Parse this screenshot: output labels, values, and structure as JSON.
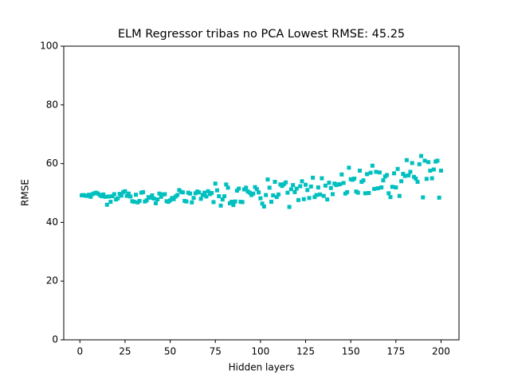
{
  "chart_data": {
    "type": "scatter",
    "title": "ELM Regressor tribas no PCA Lowest RMSE: 45.25",
    "x_label": "Hidden layers",
    "y_label": "RMSE",
    "xlim": [
      -8.95,
      209.95
    ],
    "ylim": [
      0,
      100
    ],
    "xticks": [
      0,
      25,
      50,
      75,
      100,
      125,
      150,
      175,
      200
    ],
    "yticks": [
      0,
      20,
      40,
      60,
      80,
      100
    ],
    "color": "#00bfbf",
    "marker": "square",
    "x": [
      1,
      2,
      3,
      4,
      5,
      6,
      7,
      8,
      9,
      10,
      11,
      12,
      13,
      14,
      15,
      16,
      17,
      18,
      19,
      20,
      21,
      22,
      23,
      24,
      25,
      26,
      27,
      28,
      29,
      30,
      31,
      32,
      33,
      34,
      35,
      36,
      37,
      38,
      39,
      40,
      41,
      42,
      43,
      44,
      45,
      46,
      47,
      48,
      49,
      50,
      51,
      52,
      53,
      54,
      55,
      56,
      57,
      58,
      59,
      60,
      61,
      62,
      63,
      64,
      65,
      66,
      67,
      68,
      69,
      70,
      71,
      72,
      73,
      74,
      75,
      76,
      77,
      78,
      79,
      80,
      81,
      82,
      83,
      84,
      85,
      86,
      87,
      88,
      89,
      90,
      91,
      92,
      93,
      94,
      95,
      96,
      97,
      98,
      99,
      100,
      101,
      102,
      103,
      104,
      105,
      106,
      107,
      108,
      109,
      110,
      111,
      112,
      113,
      114,
      115,
      116,
      117,
      118,
      119,
      120,
      121,
      122,
      123,
      124,
      125,
      126,
      127,
      128,
      129,
      130,
      131,
      132,
      133,
      134,
      135,
      136,
      137,
      138,
      139,
      140,
      141,
      142,
      143,
      144,
      145,
      146,
      147,
      148,
      149,
      150,
      151,
      152,
      153,
      154,
      155,
      156,
      157,
      158,
      159,
      160,
      161,
      162,
      163,
      164,
      165,
      166,
      167,
      168,
      169,
      170,
      171,
      172,
      173,
      174,
      175,
      176,
      177,
      178,
      179,
      180,
      181,
      182,
      183,
      184,
      185,
      186,
      187,
      188,
      189,
      190,
      191,
      192,
      193,
      194,
      195,
      196,
      197,
      198,
      199,
      200
    ],
    "values": [
      49.2,
      49.3,
      49.1,
      49.0,
      49.4,
      48.7,
      49.6,
      49.9,
      50.1,
      49.8,
      49.3,
      48.9,
      49.5,
      48.7,
      46.0,
      48.8,
      47.0,
      48.9,
      49.6,
      47.8,
      48.2,
      49.7,
      49.1,
      50.3,
      50.6,
      49.0,
      49.8,
      48.8,
      47.2,
      47.0,
      49.4,
      46.8,
      47.3,
      50.1,
      50.3,
      47.1,
      47.5,
      48.6,
      48.4,
      49.2,
      48.1,
      46.5,
      47.8,
      49.8,
      48.7,
      49.5,
      49.6,
      47.2,
      47.0,
      47.5,
      48.3,
      47.9,
      48.8,
      49.3,
      51.0,
      50.4,
      50.2,
      47.3,
      47.1,
      50.1,
      49.8,
      46.8,
      48.3,
      49.9,
      50.5,
      50.2,
      48.0,
      49.3,
      50.1,
      48.8,
      50.6,
      49.6,
      50.0,
      46.9,
      53.2,
      50.9,
      48.9,
      45.7,
      47.8,
      48.9,
      52.9,
      51.8,
      46.5,
      47.0,
      45.9,
      47.1,
      50.8,
      51.5,
      47.0,
      46.9,
      51.2,
      51.8,
      50.5,
      50.1,
      49.3,
      49.8,
      52.0,
      51.3,
      50.2,
      48.2,
      46.4,
      45.4,
      49.3,
      54.6,
      51.8,
      47.0,
      49.2,
      53.8,
      48.6,
      49.5,
      52.9,
      52.4,
      53.0,
      53.6,
      50.1,
      45.25,
      51.3,
      52.7,
      50.3,
      51.5,
      47.6,
      52.3,
      54.0,
      47.9,
      52.8,
      51.0,
      48.3,
      52.2,
      55.2,
      48.6,
      49.3,
      51.9,
      49.5,
      55.0,
      49.0,
      52.5,
      47.8,
      53.5,
      51.7,
      49.6,
      53.2,
      52.7,
      52.9,
      53.0,
      56.3,
      53.4,
      49.8,
      50.3,
      58.6,
      54.7,
      54.5,
      54.9,
      50.5,
      50.1,
      57.6,
      53.8,
      54.3,
      49.9,
      56.4,
      50.0,
      56.9,
      59.3,
      51.4,
      57.2,
      51.6,
      57.0,
      51.9,
      54.3,
      55.6,
      56.1,
      49.9,
      48.6,
      52.1,
      56.7,
      51.9,
      58.2,
      49.0,
      54.0,
      56.5,
      55.8,
      61.2,
      56.0,
      57.2,
      60.2,
      55.5,
      54.9,
      53.8,
      59.8,
      62.6,
      48.5,
      61.0,
      54.8,
      60.5,
      57.6,
      55.0,
      58.0,
      60.7,
      61.0,
      48.4,
      57.6
    ]
  }
}
